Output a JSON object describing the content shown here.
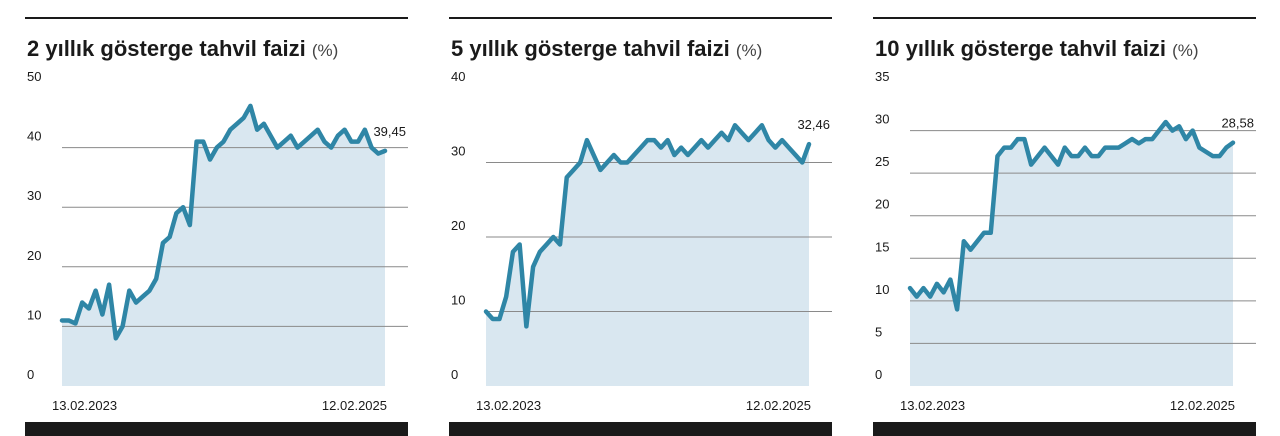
{
  "chart_data": [
    {
      "type": "line",
      "title": "2 yıllık gösterge tahvil faizi",
      "unit": "(%)",
      "categories": [
        "13.02.2023",
        null,
        null,
        null,
        null,
        null,
        null,
        null,
        null,
        null,
        null,
        null,
        null,
        null,
        null,
        null,
        null,
        null,
        null,
        null,
        null,
        null,
        null,
        null,
        null,
        null,
        null,
        null,
        null,
        null,
        null,
        null,
        null,
        null,
        null,
        null,
        null,
        null,
        null,
        null,
        null,
        null,
        null,
        null,
        null,
        null,
        null,
        null,
        "12.02.2025"
      ],
      "values": [
        11,
        11,
        10.5,
        14,
        13,
        16,
        12,
        17,
        8,
        10,
        16,
        14,
        15,
        16,
        18,
        24,
        25,
        29,
        30,
        27,
        41,
        41,
        38,
        40,
        41,
        43,
        44,
        45,
        47,
        43,
        44,
        42,
        40,
        41,
        42,
        40,
        41,
        42,
        43,
        41,
        40,
        42,
        43,
        41,
        41,
        43,
        40,
        39,
        39.45
      ],
      "value_labels": [
        null,
        null,
        null,
        null,
        null,
        null,
        null,
        null,
        null,
        null,
        null,
        null,
        null,
        null,
        null,
        null,
        null,
        null,
        null,
        null,
        null,
        null,
        null,
        null,
        null,
        null,
        null,
        null,
        null,
        null,
        null,
        null,
        null,
        null,
        null,
        null,
        null,
        null,
        null,
        null,
        null,
        null,
        null,
        null,
        null,
        null,
        null,
        null,
        "39,45"
      ],
      "color": "#2f86a6",
      "fill": "#d9e7f0",
      "ylim": [
        0,
        50
      ],
      "yticks": [
        0,
        10,
        20,
        30,
        40,
        50
      ],
      "grid": true
    },
    {
      "type": "line",
      "title": "5 yıllık gösterge tahvil faizi",
      "unit": "(%)",
      "categories": [
        "13.02.2023",
        null,
        null,
        null,
        null,
        null,
        null,
        null,
        null,
        null,
        null,
        null,
        null,
        null,
        null,
        null,
        null,
        null,
        null,
        null,
        null,
        null,
        null,
        null,
        null,
        null,
        null,
        null,
        null,
        null,
        null,
        null,
        null,
        null,
        null,
        null,
        null,
        null,
        null,
        null,
        null,
        null,
        null,
        null,
        null,
        null,
        null,
        null,
        "12.02.2025"
      ],
      "values": [
        10,
        9,
        9,
        12,
        18,
        19,
        8,
        16,
        18,
        19,
        20,
        19,
        28,
        29,
        30,
        33,
        31,
        29,
        30,
        31,
        30,
        30,
        31,
        32,
        33,
        33,
        32,
        33,
        31,
        32,
        31,
        32,
        33,
        32,
        33,
        34,
        33,
        35,
        34,
        33,
        34,
        35,
        33,
        32,
        33,
        32,
        31,
        30,
        32.46
      ],
      "value_labels": [
        null,
        null,
        null,
        null,
        null,
        null,
        null,
        null,
        null,
        null,
        null,
        null,
        null,
        null,
        null,
        null,
        null,
        null,
        null,
        null,
        null,
        null,
        null,
        null,
        null,
        null,
        null,
        null,
        null,
        null,
        null,
        null,
        null,
        null,
        null,
        null,
        null,
        null,
        null,
        null,
        null,
        null,
        null,
        null,
        null,
        null,
        null,
        null,
        "32,46"
      ],
      "color": "#2f86a6",
      "fill": "#d9e7f0",
      "ylim": [
        0,
        40
      ],
      "yticks": [
        0,
        10,
        20,
        30,
        40
      ],
      "grid": true
    },
    {
      "type": "line",
      "title": "10 yıllık gösterge tahvil faizi",
      "unit": "(%)",
      "categories": [
        "13.02.2023",
        null,
        null,
        null,
        null,
        null,
        null,
        null,
        null,
        null,
        null,
        null,
        null,
        null,
        null,
        null,
        null,
        null,
        null,
        null,
        null,
        null,
        null,
        null,
        null,
        null,
        null,
        null,
        null,
        null,
        null,
        null,
        null,
        null,
        null,
        null,
        null,
        null,
        null,
        null,
        null,
        null,
        null,
        null,
        null,
        null,
        null,
        null,
        "12.02.2025"
      ],
      "values": [
        11.5,
        10.5,
        11.5,
        10.5,
        12,
        11,
        12.5,
        9,
        17,
        16,
        17,
        18,
        18,
        27,
        28,
        28,
        29,
        29,
        26,
        27,
        28,
        27,
        26,
        28,
        27,
        27,
        28,
        27,
        27,
        28,
        28,
        28,
        28.5,
        29,
        28.5,
        29,
        29,
        30,
        31,
        30,
        30.5,
        29,
        30,
        28,
        27.5,
        27,
        27,
        28,
        28.58
      ],
      "value_labels": [
        null,
        null,
        null,
        null,
        null,
        null,
        null,
        null,
        null,
        null,
        null,
        null,
        null,
        null,
        null,
        null,
        null,
        null,
        null,
        null,
        null,
        null,
        null,
        null,
        null,
        null,
        null,
        null,
        null,
        null,
        null,
        null,
        null,
        null,
        null,
        null,
        null,
        null,
        null,
        null,
        null,
        null,
        null,
        null,
        null,
        null,
        null,
        null,
        "28,58"
      ],
      "color": "#2f86a6",
      "fill": "#d9e7f0",
      "ylim": [
        0,
        35
      ],
      "yticks": [
        0,
        5,
        10,
        15,
        20,
        25,
        30,
        35
      ],
      "grid": true
    }
  ]
}
